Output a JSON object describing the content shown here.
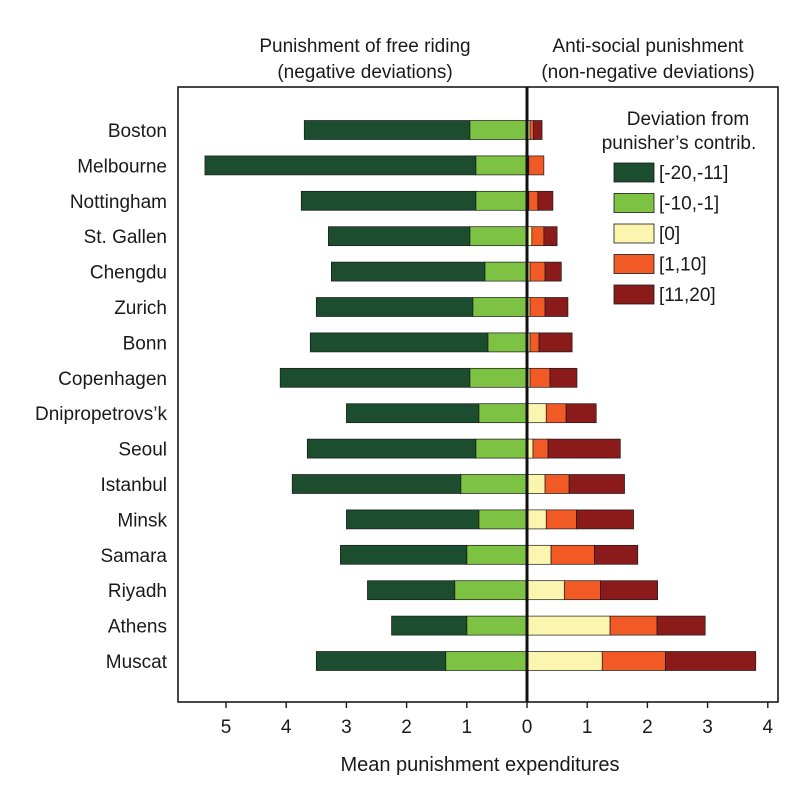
{
  "chart_data": {
    "type": "bar",
    "orientation": "horizontal-diverging",
    "headers": {
      "left": [
        "Punishment of free riding",
        "(negative deviations)"
      ],
      "right": [
        "Anti-social punishment",
        "(non-negative deviations)"
      ]
    },
    "xlabel": "Mean punishment expenditures",
    "xlim": [
      -5.8,
      4.1
    ],
    "xticks": [
      {
        "value": -5,
        "label": "5"
      },
      {
        "value": -4,
        "label": "4"
      },
      {
        "value": -3,
        "label": "3"
      },
      {
        "value": -2,
        "label": "2"
      },
      {
        "value": -1,
        "label": "1"
      },
      {
        "value": 0,
        "label": "0"
      },
      {
        "value": 1,
        "label": "1"
      },
      {
        "value": 2,
        "label": "2"
      },
      {
        "value": 3,
        "label": "3"
      },
      {
        "value": 4,
        "label": "4"
      }
    ],
    "legend": {
      "title": [
        "Deviation from",
        "punisher’s contrib."
      ],
      "placement": "top-right"
    },
    "categories": [
      "Boston",
      "Melbourne",
      "Nottingham",
      "St. Gallen",
      "Chengdu",
      "Zurich",
      "Bonn",
      "Copenhagen",
      "Dnipropetrovs’k",
      "Seoul",
      "Istanbul",
      "Minsk",
      "Samara",
      "Riyadh",
      "Athens",
      "Muscat"
    ],
    "series": [
      {
        "name": "[-20,-11]",
        "color": "#1b4d2e",
        "side": "negative",
        "values": [
          2.75,
          4.5,
          2.9,
          2.35,
          2.55,
          2.6,
          2.95,
          3.15,
          2.2,
          2.8,
          2.8,
          2.2,
          2.1,
          1.45,
          1.25,
          2.15
        ]
      },
      {
        "name": "[-10,-1]",
        "color": "#7dc242",
        "side": "negative",
        "values": [
          0.95,
          0.85,
          0.85,
          0.95,
          0.7,
          0.9,
          0.65,
          0.95,
          0.8,
          0.85,
          1.1,
          0.8,
          1.0,
          1.2,
          1.0,
          1.35
        ]
      },
      {
        "name": "[0]",
        "color": "#fbf5b0",
        "side": "positive",
        "values": [
          0.05,
          0.03,
          0.03,
          0.08,
          0.05,
          0.05,
          0.05,
          0.05,
          0.32,
          0.1,
          0.3,
          0.32,
          0.4,
          0.62,
          1.38,
          1.25
        ]
      },
      {
        "name": "[1,10]",
        "color": "#f15a24",
        "side": "positive",
        "values": [
          0.06,
          0.25,
          0.15,
          0.2,
          0.25,
          0.25,
          0.15,
          0.33,
          0.33,
          0.25,
          0.4,
          0.5,
          0.72,
          0.6,
          0.78,
          1.05
        ]
      },
      {
        "name": "[11,20]",
        "color": "#8b1a1a",
        "side": "positive",
        "values": [
          0.14,
          0.0,
          0.25,
          0.22,
          0.27,
          0.38,
          0.55,
          0.45,
          0.5,
          1.2,
          0.92,
          0.95,
          0.72,
          0.95,
          0.8,
          1.5
        ]
      }
    ],
    "grid": false
  }
}
